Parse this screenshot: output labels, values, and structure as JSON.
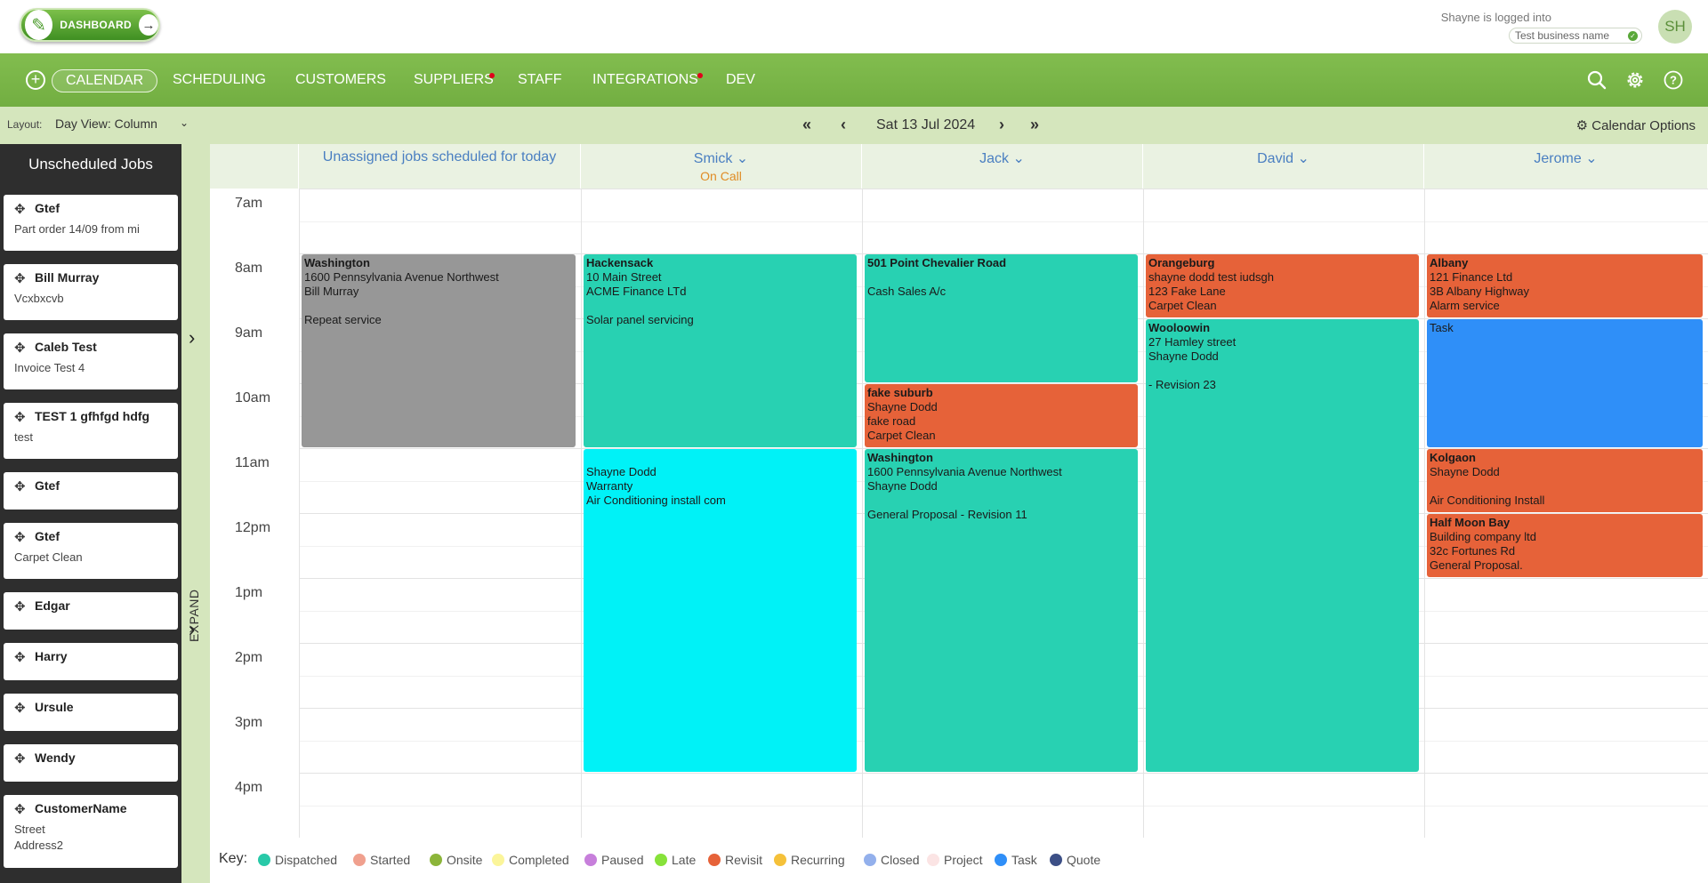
{
  "header": {
    "dashboard_label": "DASHBOARD",
    "logged_in_text": "Shayne is logged into",
    "business_name": "Test business name",
    "avatar_initials": "SH"
  },
  "nav": {
    "items": [
      {
        "label": "CALENDAR",
        "active": true
      },
      {
        "label": "SCHEDULING"
      },
      {
        "label": "CUSTOMERS"
      },
      {
        "label": "SUPPLIERS",
        "dot": true
      },
      {
        "label": "STAFF"
      },
      {
        "label": "INTEGRATIONS",
        "dot": true
      },
      {
        "label": "DEV"
      }
    ]
  },
  "toolbar": {
    "layout_label": "Layout:",
    "layout_value": "Day View: Column",
    "date": "Sat 13 Jul 2024",
    "calendar_options": "Calendar Options"
  },
  "sidebar": {
    "title": "Unscheduled Jobs",
    "expand_label": "EXPAND",
    "jobs": [
      {
        "title": "Gtef",
        "lines": [
          "Part order 14/09 from mi"
        ]
      },
      {
        "title": "Bill Murray",
        "lines": [
          "Vcxbxcvb"
        ]
      },
      {
        "title": "Caleb Test",
        "lines": [
          "Invoice Test 4"
        ]
      },
      {
        "title": "TEST 1 gfhfgd hdfg",
        "lines": [
          "test"
        ]
      },
      {
        "title": "Gtef",
        "lines": []
      },
      {
        "title": "Gtef",
        "lines": [
          "Carpet Clean"
        ]
      },
      {
        "title": "Edgar",
        "lines": []
      },
      {
        "title": "Harry",
        "lines": []
      },
      {
        "title": "Ursule",
        "lines": []
      },
      {
        "title": "Wendy",
        "lines": []
      },
      {
        "title": "CustomerName",
        "lines": [
          "Street",
          "Address2"
        ]
      }
    ]
  },
  "calendar": {
    "columns": [
      {
        "name": "Unassigned jobs scheduled for today",
        "sub": ""
      },
      {
        "name": "Smick",
        "sub": "On Call",
        "dropdown": true
      },
      {
        "name": "Jack",
        "sub": "",
        "dropdown": true
      },
      {
        "name": "David",
        "sub": "",
        "dropdown": true
      },
      {
        "name": "Jerome",
        "sub": "",
        "dropdown": true
      }
    ],
    "hours": [
      "7am",
      "8am",
      "9am",
      "10am",
      "11am",
      "12pm",
      "1pm",
      "2pm",
      "3pm",
      "4pm"
    ],
    "jobs": [
      {
        "col": 0,
        "start": 8,
        "end": 11,
        "color": "grey",
        "title": "Washington",
        "lines": [
          "1600 Pennsylvania Avenue Northwest",
          "Bill Murray",
          "",
          "Repeat service"
        ]
      },
      {
        "col": 1,
        "start": 8,
        "end": 11,
        "color": "teal",
        "title": "Hackensack",
        "lines": [
          "10 Main Street",
          "ACME Finance LTd",
          "",
          "Solar panel servicing"
        ]
      },
      {
        "col": 1,
        "start": 11,
        "end": 16,
        "color": "cyan",
        "title": "",
        "lines": [
          "",
          "Shayne Dodd",
          "Warranty",
          "Air Conditioning install com"
        ]
      },
      {
        "col": 2,
        "start": 8,
        "end": 10,
        "color": "teal",
        "title": "501 Point Chevalier Road",
        "lines": [
          "",
          "Cash Sales A/c"
        ]
      },
      {
        "col": 2,
        "start": 10,
        "end": 11,
        "color": "orange",
        "title": "fake suburb",
        "lines": [
          "Shayne Dodd",
          "fake road",
          "Carpet Clean"
        ]
      },
      {
        "col": 2,
        "start": 11,
        "end": 16,
        "color": "teal",
        "title": "Washington",
        "lines": [
          "1600 Pennsylvania Avenue Northwest",
          "Shayne Dodd",
          "",
          "General Proposal - Revision 11"
        ]
      },
      {
        "col": 3,
        "start": 8,
        "end": 9,
        "color": "orange",
        "title": "Orangeburg",
        "lines": [
          "shayne dodd test iudsgh",
          "123 Fake Lane",
          "Carpet Clean"
        ]
      },
      {
        "col": 3,
        "start": 9,
        "end": 16,
        "color": "teal",
        "title": "Wooloowin",
        "lines": [
          "27 Hamley street",
          "Shayne Dodd",
          "",
          "- Revision 23"
        ]
      },
      {
        "col": 4,
        "start": 8,
        "end": 9,
        "color": "orange",
        "title": "Albany",
        "lines": [
          "121 Finance Ltd",
          "3B Albany Highway",
          "Alarm service"
        ]
      },
      {
        "col": 4,
        "start": 9,
        "end": 11,
        "color": "blue",
        "title": "",
        "lines": [
          "Task"
        ]
      },
      {
        "col": 4,
        "start": 11,
        "end": 12,
        "color": "orange",
        "title": "Kolgaon",
        "lines": [
          "Shayne Dodd",
          "",
          "Air Conditioning Install"
        ]
      },
      {
        "col": 4,
        "start": 12,
        "end": 13,
        "color": "orange",
        "title": "Half Moon Bay",
        "lines": [
          "Building company ltd",
          "32c Fortunes Rd",
          "General Proposal."
        ]
      }
    ]
  },
  "colors": {
    "grey": "#979797",
    "teal": "#28d1b2",
    "cyan": "#00f2f7",
    "orange": "#e66239",
    "blue": "#2f8ff8"
  },
  "key": {
    "label": "Key:",
    "items": [
      {
        "label": "Dispatched",
        "color": "#28c9a8"
      },
      {
        "label": "Started",
        "color": "#f0a08e"
      },
      {
        "label": "Onsite",
        "color": "#8cb53a"
      },
      {
        "label": "Completed",
        "color": "#fbf59a"
      },
      {
        "label": "Paused",
        "color": "#c77fdb"
      },
      {
        "label": "Late",
        "color": "#87e23a"
      },
      {
        "label": "Revisit",
        "color": "#e66239"
      },
      {
        "label": "Recurring",
        "color": "#f5c13a"
      },
      {
        "label": "Closed",
        "color": "#93b0ec"
      },
      {
        "label": "Project",
        "color": "#fbe4e4"
      },
      {
        "label": "Task",
        "color": "#2f8ff8"
      },
      {
        "label": "Quote",
        "color": "#3c4f86"
      }
    ]
  }
}
